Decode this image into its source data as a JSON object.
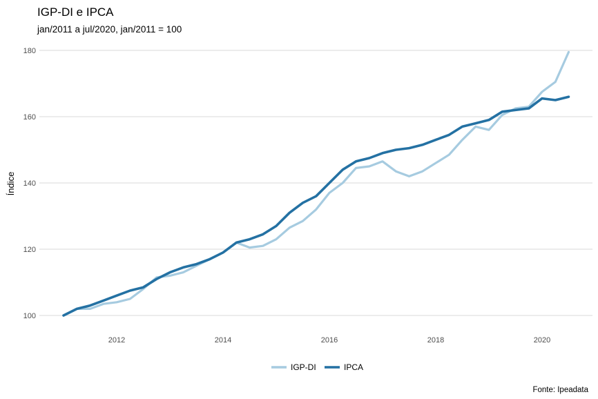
{
  "chart_data": {
    "type": "line",
    "title": "IGP-DI e IPCA",
    "subtitle": "jan/2011 a jul/2020, jan/2011 = 100",
    "xlabel": "",
    "ylabel": "Índice",
    "caption": "Fonte: Ipeadata",
    "xlim": [
      2011.0,
      2020.5
    ],
    "ylim": [
      100,
      180
    ],
    "x_ticks": [
      2012,
      2014,
      2016,
      2018,
      2020
    ],
    "x_tick_labels": [
      "2012",
      "2014",
      "2016",
      "2018",
      "2020"
    ],
    "y_ticks": [
      100,
      120,
      140,
      160,
      180
    ],
    "y_tick_labels": [
      "100",
      "120",
      "140",
      "160",
      "180"
    ],
    "grid": true,
    "legend_position": "bottom",
    "series": [
      {
        "name": "IGP-DI",
        "color": "#a6cbe0",
        "x": [
          2011.0,
          2011.25,
          2011.5,
          2011.75,
          2012.0,
          2012.25,
          2012.5,
          2012.75,
          2013.0,
          2013.25,
          2013.5,
          2013.75,
          2014.0,
          2014.25,
          2014.5,
          2014.75,
          2015.0,
          2015.25,
          2015.5,
          2015.75,
          2016.0,
          2016.25,
          2016.5,
          2016.75,
          2017.0,
          2017.25,
          2017.5,
          2017.75,
          2018.0,
          2018.25,
          2018.5,
          2018.75,
          2019.0,
          2019.25,
          2019.5,
          2019.75,
          2020.0,
          2020.25,
          2020.5
        ],
        "values": [
          100.0,
          102.0,
          102.0,
          103.5,
          104.0,
          105.0,
          108.0,
          111.5,
          112.0,
          113.0,
          115.0,
          117.0,
          119.0,
          122.0,
          120.5,
          121.0,
          123.0,
          126.5,
          128.5,
          132.0,
          137.0,
          140.0,
          144.5,
          145.0,
          146.5,
          143.5,
          142.0,
          143.5,
          146.0,
          148.5,
          153.0,
          157.0,
          156.0,
          160.5,
          162.5,
          163.0,
          167.5,
          170.5,
          179.5
        ]
      },
      {
        "name": "IPCA",
        "color": "#2471a3",
        "x": [
          2011.0,
          2011.25,
          2011.5,
          2011.75,
          2012.0,
          2012.25,
          2012.5,
          2012.75,
          2013.0,
          2013.25,
          2013.5,
          2013.75,
          2014.0,
          2014.25,
          2014.5,
          2014.75,
          2015.0,
          2015.25,
          2015.5,
          2015.75,
          2016.0,
          2016.25,
          2016.5,
          2016.75,
          2017.0,
          2017.25,
          2017.5,
          2017.75,
          2018.0,
          2018.25,
          2018.5,
          2018.75,
          2019.0,
          2019.25,
          2019.5,
          2019.75,
          2020.0,
          2020.25,
          2020.5
        ],
        "values": [
          100.0,
          102.0,
          103.0,
          104.5,
          106.0,
          107.5,
          108.5,
          111.0,
          113.0,
          114.5,
          115.5,
          117.0,
          119.0,
          122.0,
          123.0,
          124.5,
          127.0,
          131.0,
          134.0,
          136.0,
          140.0,
          144.0,
          146.5,
          147.5,
          149.0,
          150.0,
          150.5,
          151.5,
          153.0,
          154.5,
          157.0,
          158.0,
          159.0,
          161.5,
          162.0,
          162.5,
          165.5,
          165.0,
          166.0
        ]
      }
    ]
  }
}
